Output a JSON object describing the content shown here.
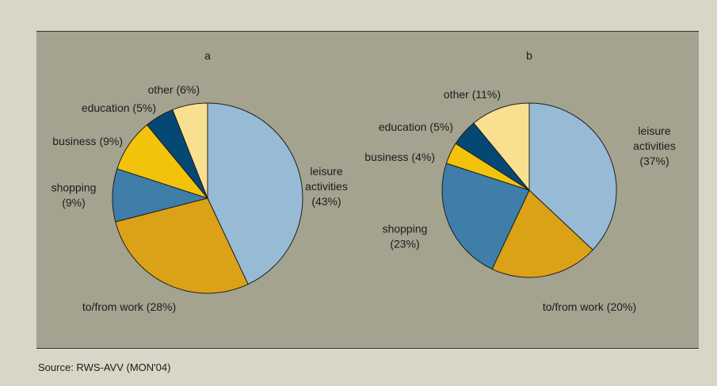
{
  "source": "Source: RWS-AVV (MON'04)",
  "colors": {
    "leisure": "#98bbd5",
    "work": "#dba218",
    "shopping": "#3e7ea8",
    "business": "#f3c30b",
    "education": "#064874",
    "other": "#f9e090",
    "plot_background": "#a4a38f",
    "page_background": "#d8d6c6"
  },
  "chart_data": [
    {
      "type": "pie",
      "title": "a",
      "slices": [
        {
          "key": "leisure",
          "label": [
            "leisure",
            "activities",
            "(43%)"
          ],
          "value": 43
        },
        {
          "key": "work",
          "label": [
            "to/from work (28%)"
          ],
          "value": 28
        },
        {
          "key": "shopping",
          "label": [
            "shopping",
            "(9%)"
          ],
          "value": 9
        },
        {
          "key": "business",
          "label": [
            "business (9%)"
          ],
          "value": 9
        },
        {
          "key": "education",
          "label": [
            "education (5%)"
          ],
          "value": 5
        },
        {
          "key": "other",
          "label": [
            "other (6%)"
          ],
          "value": 6
        }
      ]
    },
    {
      "type": "pie",
      "title": "b",
      "slices": [
        {
          "key": "leisure",
          "label": [
            "leisure",
            "activities",
            "(37%)"
          ],
          "value": 37
        },
        {
          "key": "work",
          "label": [
            "to/from work (20%)"
          ],
          "value": 20
        },
        {
          "key": "shopping",
          "label": [
            "shopping",
            "(23%)"
          ],
          "value": 23
        },
        {
          "key": "business",
          "label": [
            "business (4%)"
          ],
          "value": 4
        },
        {
          "key": "education",
          "label": [
            "education (5%)"
          ],
          "value": 5
        },
        {
          "key": "other",
          "label": [
            "other (11%)"
          ],
          "value": 11
        }
      ]
    }
  ]
}
